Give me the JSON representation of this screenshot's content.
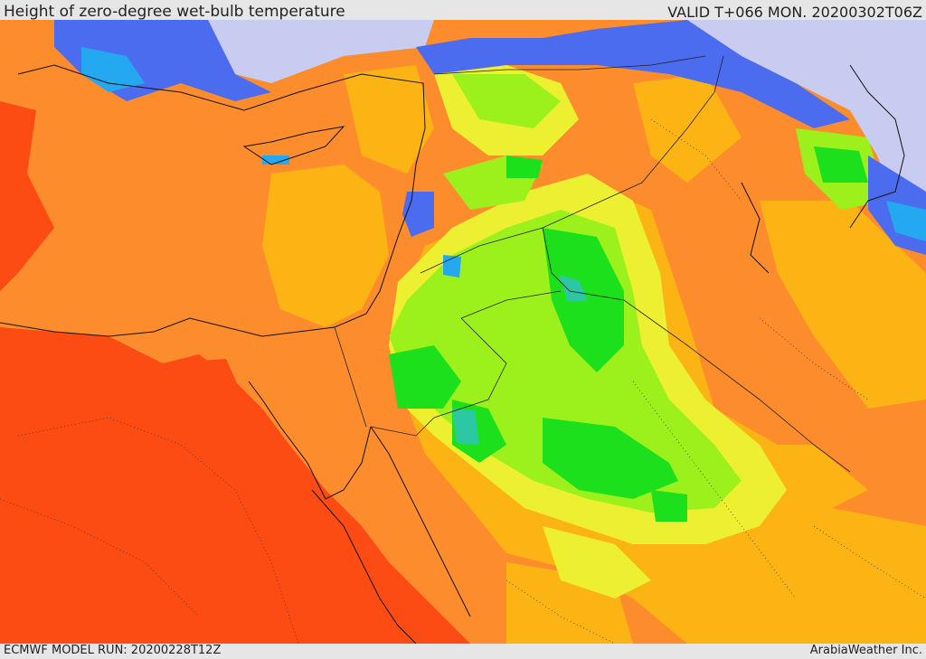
{
  "header": {
    "title": "Height of zero-degree wet-bulb temperature",
    "valid": "VALID T+066 MON. 20200302T06Z"
  },
  "footer": {
    "model_run": "ECMWF MODEL RUN: 20200228T12Z",
    "credit": "ArabiaWeather Inc."
  },
  "palette": {
    "deep_orange": "#fc4c14",
    "orange": "#fc8c2c",
    "amber": "#fcb414",
    "yellow": "#ecf030",
    "lime": "#9cf01c",
    "green": "#1ce01c",
    "teal": "#2cc8a4",
    "cyan": "#24a8f0",
    "blue": "#4c6cf0",
    "lavender": "#c8ccf0"
  }
}
